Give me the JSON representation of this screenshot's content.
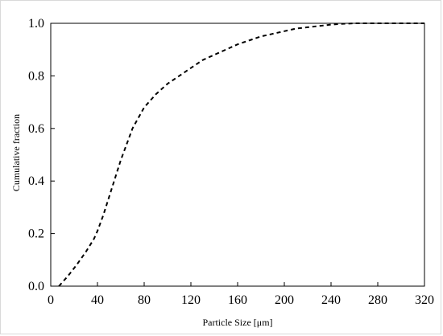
{
  "chart_data": {
    "type": "line",
    "title": "",
    "xlabel": "Particle Size [μm]",
    "ylabel": "Cumulative fraction",
    "xlim": [
      0,
      320
    ],
    "ylim": [
      0,
      1.0
    ],
    "xticks": [
      0,
      40,
      80,
      120,
      160,
      200,
      240,
      280,
      320
    ],
    "xtick_labels": [
      "0",
      "40",
      "80",
      "120",
      "160",
      "200",
      "240",
      "280",
      "320"
    ],
    "yticks": [
      0.0,
      0.2,
      0.4,
      0.6,
      0.8,
      1.0
    ],
    "ytick_labels": [
      "0.0",
      "0.2",
      "0.4",
      "0.6",
      "0.8",
      "1.0"
    ],
    "grid": false,
    "legend": false,
    "series": [
      {
        "line_style": "dashed",
        "color": "#000000",
        "x": [
          7,
          15,
          22,
          30,
          37,
          40,
          45,
          50,
          55,
          60,
          65,
          70,
          75,
          80,
          90,
          100,
          110,
          120,
          130,
          140,
          150,
          160,
          170,
          180,
          190,
          200,
          210,
          220,
          230,
          240,
          250,
          260,
          280,
          300,
          320
        ],
        "y": [
          0.0,
          0.04,
          0.08,
          0.13,
          0.18,
          0.21,
          0.27,
          0.34,
          0.41,
          0.48,
          0.54,
          0.6,
          0.64,
          0.68,
          0.73,
          0.77,
          0.8,
          0.83,
          0.86,
          0.88,
          0.9,
          0.92,
          0.935,
          0.95,
          0.96,
          0.97,
          0.98,
          0.985,
          0.99,
          0.995,
          0.998,
          1.0,
          1.0,
          1.0,
          1.0
        ]
      }
    ]
  }
}
